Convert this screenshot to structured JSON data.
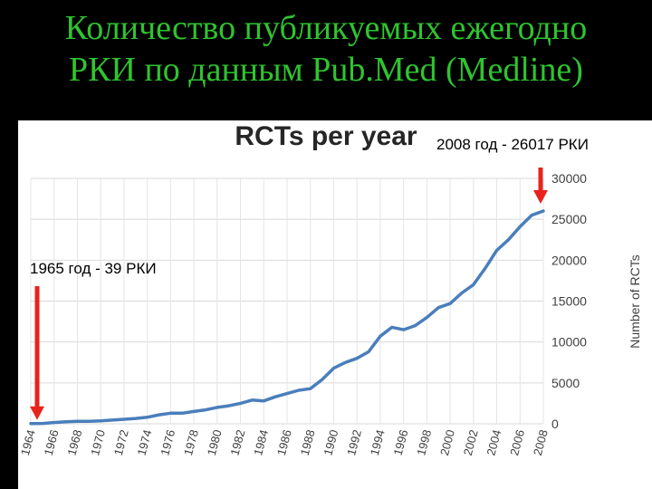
{
  "slide": {
    "title_line1": "Количество публикуемых ежегодно",
    "title_line2": "РКИ по данным Pub.Med (Medline)"
  },
  "annotations": {
    "right": "2008 год - 26017 РКИ",
    "left": "1965 год - 39 РКИ"
  },
  "chart_data": {
    "type": "line",
    "title": "RCTs per year",
    "xlabel": "",
    "ylabel": "Number of RCTs",
    "ylim": [
      0,
      30000
    ],
    "yticks": [
      0,
      5000,
      10000,
      15000,
      20000,
      25000,
      30000
    ],
    "xticks": [
      "1964",
      "1966",
      "1968",
      "1970",
      "1972",
      "1974",
      "1976",
      "1978",
      "1980",
      "1982",
      "1984",
      "1986",
      "1988",
      "1990",
      "1992",
      "1994",
      "1996",
      "1998",
      "2000",
      "2002",
      "2004",
      "2006",
      "2008"
    ],
    "grid": true,
    "series_color": "#4a7ebb",
    "arrow_color": "#e8231c",
    "series": [
      {
        "x": [
          1964,
          1965,
          1966,
          1967,
          1968,
          1969,
          1970,
          1971,
          1972,
          1973,
          1974,
          1975,
          1976,
          1977,
          1978,
          1979,
          1980,
          1981,
          1982,
          1983,
          1984,
          1985,
          1986,
          1987,
          1988,
          1989,
          1990,
          1991,
          1992,
          1993,
          1994,
          1995,
          1996,
          1997,
          1998,
          1999,
          2000,
          2001,
          2002,
          2003,
          2004,
          2005,
          2006,
          2007,
          2008
        ],
        "values": [
          30,
          39,
          150,
          250,
          300,
          300,
          350,
          450,
          550,
          650,
          800,
          1100,
          1300,
          1300,
          1500,
          1700,
          2000,
          2200,
          2500,
          2900,
          2800,
          3300,
          3700,
          4100,
          4300,
          5400,
          6800,
          7500,
          8000,
          8800,
          10700,
          11800,
          11500,
          12000,
          13000,
          14200,
          14700,
          16000,
          17000,
          19000,
          21200,
          22500,
          24100,
          25500,
          26017
        ]
      }
    ]
  }
}
